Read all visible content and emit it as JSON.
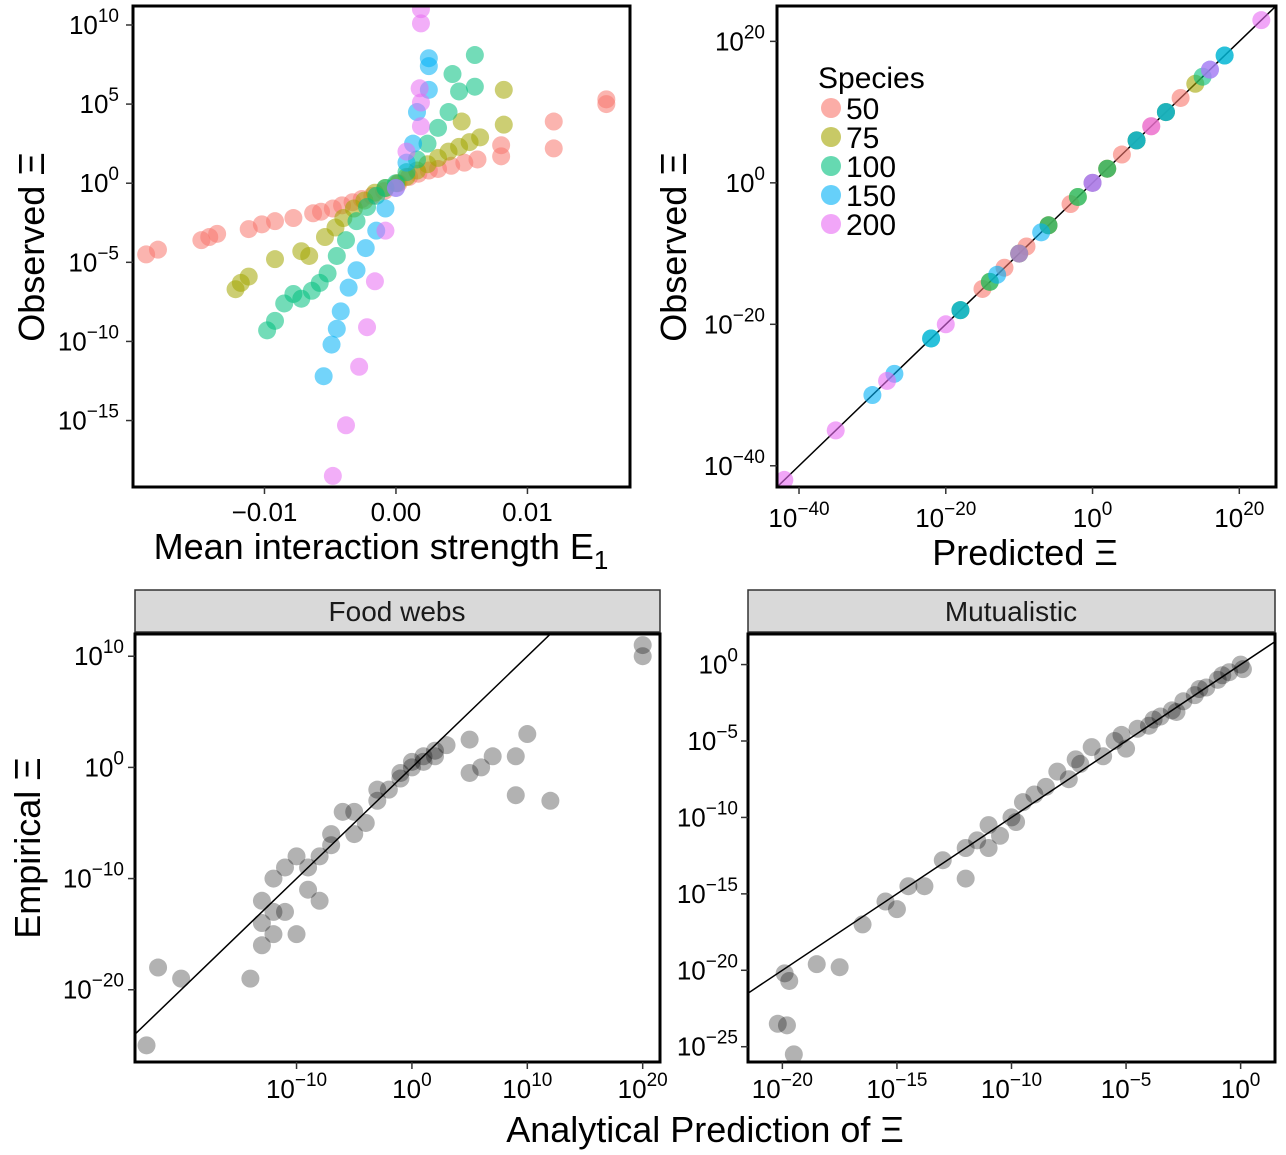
{
  "figure": {
    "panels": {
      "a": {
        "xlabel": "Mean interaction strength E",
        "xlabel_sub": "1",
        "ylabel": "Observed",
        "ylabel_symbol": "Ξ"
      },
      "b": {
        "xlabel": "Predicted Ξ",
        "ylabel": "Observed",
        "ylabel_symbol": "Ξ"
      },
      "c": {
        "strip": "Food webs",
        "ylabel": "Empirical",
        "ylabel_symbol": "Ξ"
      },
      "d": {
        "strip": "Mutualistic"
      },
      "shared_xlabel": "Analytical Prediction of Ξ"
    },
    "legend": {
      "title": "Species",
      "entries": [
        {
          "label": "50",
          "color": "#F8766D"
        },
        {
          "label": "75",
          "color": "#A3A500"
        },
        {
          "label": "100",
          "color": "#00BF7D"
        },
        {
          "label": "150",
          "color": "#00B0F6"
        },
        {
          "label": "200",
          "color": "#E76BF3"
        }
      ]
    }
  },
  "chart_data": [
    {
      "type": "scatter",
      "xlabel": "Mean interaction strength E1",
      "ylabel": "Observed Ξ",
      "y_scale": "log10",
      "xlim": [
        -0.02,
        0.0178
      ],
      "ylim_log10": [
        -19.2,
        11.2
      ],
      "x_ticks": [
        -0.01,
        0.0,
        0.01
      ],
      "x_tick_labels": [
        "−0.01",
        "0.00",
        "0.01"
      ],
      "y_ticks_log10": [
        10,
        5,
        0,
        -5,
        -10,
        -15
      ],
      "color_by": "Species",
      "series": [
        {
          "name": "50",
          "color": "#F8766D",
          "points": [
            [
              -0.019,
              -4.5
            ],
            [
              -0.0181,
              -4.2
            ],
            [
              -0.0148,
              -3.6
            ],
            [
              -0.0142,
              -3.4
            ],
            [
              -0.0136,
              -3.2
            ],
            [
              -0.0112,
              -2.9
            ],
            [
              -0.0102,
              -2.6
            ],
            [
              -0.0092,
              -2.4
            ],
            [
              -0.0078,
              -2.2
            ],
            [
              -0.0063,
              -1.9
            ],
            [
              -0.0057,
              -1.8
            ],
            [
              -0.0048,
              -1.6
            ],
            [
              -0.0041,
              -1.4
            ],
            [
              -0.0033,
              -1.2
            ],
            [
              -0.0026,
              -1.0
            ],
            [
              -0.0018,
              -0.8
            ],
            [
              -0.0009,
              -0.5
            ],
            [
              0.0002,
              0.0
            ],
            [
              0.001,
              0.4
            ],
            [
              0.0017,
              0.6
            ],
            [
              0.0025,
              0.8
            ],
            [
              0.0032,
              0.9
            ],
            [
              0.0042,
              1.1
            ],
            [
              0.0052,
              1.3
            ],
            [
              0.0062,
              1.5
            ],
            [
              0.008,
              1.7
            ],
            [
              0.008,
              2.4
            ],
            [
              0.012,
              2.2
            ],
            [
              0.012,
              3.9
            ],
            [
              0.016,
              5.3
            ],
            [
              0.016,
              5.0
            ]
          ]
        },
        {
          "name": "75",
          "color": "#A3A500",
          "points": [
            [
              -0.0122,
              -6.7
            ],
            [
              -0.0118,
              -6.3
            ],
            [
              -0.0112,
              -5.9
            ],
            [
              -0.0092,
              -4.8
            ],
            [
              -0.0072,
              -4.3
            ],
            [
              -0.0066,
              -4.6
            ],
            [
              -0.0054,
              -3.4
            ],
            [
              -0.0046,
              -2.8
            ],
            [
              -0.004,
              -2.2
            ],
            [
              -0.0032,
              -1.6
            ],
            [
              -0.0024,
              -1.1
            ],
            [
              -0.0016,
              -0.6
            ],
            [
              -0.0008,
              -0.3
            ],
            [
              0.0001,
              0.0
            ],
            [
              0.0008,
              0.4
            ],
            [
              0.0016,
              0.8
            ],
            [
              0.0024,
              1.2
            ],
            [
              0.0032,
              1.6
            ],
            [
              0.004,
              2.0
            ],
            [
              0.0048,
              2.3
            ],
            [
              0.0056,
              2.6
            ],
            [
              0.0064,
              2.9
            ],
            [
              0.0082,
              3.7
            ],
            [
              0.0082,
              5.9
            ],
            [
              0.005,
              3.9
            ]
          ]
        },
        {
          "name": "100",
          "color": "#00BF7D",
          "points": [
            [
              -0.0098,
              -9.3
            ],
            [
              -0.0092,
              -8.7
            ],
            [
              -0.0085,
              -7.6
            ],
            [
              -0.0078,
              -7.0
            ],
            [
              -0.0072,
              -7.3
            ],
            [
              -0.0064,
              -6.8
            ],
            [
              -0.0058,
              -6.3
            ],
            [
              -0.0052,
              -5.7
            ],
            [
              -0.0045,
              -4.6
            ],
            [
              -0.0038,
              -3.6
            ],
            [
              -0.003,
              -2.4
            ],
            [
              -0.0022,
              -1.5
            ],
            [
              -0.0015,
              -0.8
            ],
            [
              -0.0008,
              -0.3
            ],
            [
              0.0,
              0.0
            ],
            [
              0.0008,
              0.7
            ],
            [
              0.0016,
              1.5
            ],
            [
              0.0024,
              2.5
            ],
            [
              0.0032,
              3.5
            ],
            [
              0.004,
              4.5
            ],
            [
              0.0048,
              5.8
            ],
            [
              0.006,
              6.1
            ],
            [
              0.006,
              8.1
            ],
            [
              0.0043,
              6.9
            ]
          ]
        },
        {
          "name": "150",
          "color": "#00B0F6",
          "points": [
            [
              -0.0055,
              -12.2
            ],
            [
              -0.0049,
              -10.2
            ],
            [
              -0.0045,
              -9.2
            ],
            [
              -0.0042,
              -8.1
            ],
            [
              -0.0036,
              -6.6
            ],
            [
              -0.003,
              -5.5
            ],
            [
              -0.0023,
              -4.1
            ],
            [
              -0.0015,
              -3.0
            ],
            [
              -0.0008,
              -1.6
            ],
            [
              0.0,
              -0.3
            ],
            [
              0.0008,
              1.3
            ],
            [
              0.0013,
              2.5
            ],
            [
              0.0016,
              4.5
            ],
            [
              0.0025,
              5.9
            ],
            [
              0.0025,
              7.4
            ],
            [
              0.0025,
              7.9
            ]
          ]
        },
        {
          "name": "200",
          "color": "#E76BF3",
          "points": [
            [
              -0.0048,
              -18.5
            ],
            [
              -0.0038,
              -15.3
            ],
            [
              -0.0028,
              -11.6
            ],
            [
              -0.0022,
              -9.1
            ],
            [
              -0.0016,
              -6.2
            ],
            [
              -0.0008,
              -3.0
            ],
            [
              0.0,
              -0.3
            ],
            [
              0.0008,
              2.0
            ],
            [
              0.0018,
              6.0
            ],
            [
              0.0019,
              3.6
            ],
            [
              0.0019,
              5.1
            ],
            [
              0.0019,
              10.1
            ],
            [
              0.0019,
              11.0
            ]
          ]
        }
      ]
    },
    {
      "type": "scatter",
      "xlabel": "Predicted Ξ",
      "ylabel": "Observed Ξ",
      "x_scale": "log10",
      "y_scale": "log10",
      "lim_log10": [
        -43,
        25
      ],
      "ticks_log10": [
        -40,
        -20,
        0,
        20
      ],
      "reference_line": "y = x",
      "color_by": "Species",
      "series": [
        {
          "name": "50",
          "color": "#F8766D",
          "points": [
            [
              -15,
              -15
            ],
            [
              -12,
              -12
            ],
            [
              -9,
              -9
            ],
            [
              -6,
              -6
            ],
            [
              -3,
              -3
            ],
            [
              0,
              0
            ],
            [
              2,
              2
            ],
            [
              4,
              4
            ],
            [
              6,
              6
            ],
            [
              8,
              8
            ],
            [
              10,
              10
            ],
            [
              12,
              12
            ]
          ]
        },
        {
          "name": "75",
          "color": "#A3A500",
          "points": [
            [
              -18,
              -18
            ],
            [
              -14,
              -14
            ],
            [
              -10,
              -10
            ],
            [
              -6,
              -6
            ],
            [
              -2,
              -2
            ],
            [
              2,
              2
            ],
            [
              6,
              6
            ],
            [
              10,
              10
            ],
            [
              14,
              14
            ]
          ]
        },
        {
          "name": "100",
          "color": "#00BF7D",
          "points": [
            [
              -22,
              -22
            ],
            [
              -18,
              -18
            ],
            [
              -14,
              -14
            ],
            [
              -10,
              -10
            ],
            [
              -6,
              -6
            ],
            [
              -2,
              -2
            ],
            [
              2,
              2
            ],
            [
              6,
              6
            ],
            [
              10,
              10
            ],
            [
              15,
              15
            ],
            [
              18,
              18
            ]
          ]
        },
        {
          "name": "150",
          "color": "#00B0F6",
          "points": [
            [
              -30,
              -30
            ],
            [
              -27,
              -27
            ],
            [
              -22,
              -22
            ],
            [
              -18,
              -18
            ],
            [
              -13,
              -13
            ],
            [
              -7,
              -7
            ],
            [
              0,
              0
            ],
            [
              6,
              6
            ],
            [
              10,
              10
            ],
            [
              16,
              16
            ],
            [
              18,
              18
            ]
          ]
        },
        {
          "name": "200",
          "color": "#E76BF3",
          "points": [
            [
              -42,
              -42
            ],
            [
              -35,
              -35
            ],
            [
              -28,
              -28
            ],
            [
              -20,
              -20
            ],
            [
              -10,
              -10
            ],
            [
              0,
              0
            ],
            [
              8,
              8
            ],
            [
              16,
              16
            ],
            [
              23,
              23
            ]
          ]
        }
      ]
    },
    {
      "type": "scatter",
      "title": "Food webs",
      "xlabel": "Analytical Prediction of Ξ",
      "ylabel": "Empirical Ξ",
      "x_scale": "log10",
      "y_scale": "log10",
      "xlim_log10": [
        -24,
        21.5
      ],
      "ylim_log10": [
        -26.5,
        12
      ],
      "x_ticks_log10": [
        -10,
        0,
        10,
        20
      ],
      "y_ticks_log10": [
        10,
        0,
        -10,
        -20
      ],
      "reference_line": "y = x",
      "color": "#000000",
      "points": [
        [
          -22,
          -18
        ],
        [
          -20,
          -19
        ],
        [
          -23,
          -25
        ],
        [
          -14,
          -19
        ],
        [
          -13,
          -16
        ],
        [
          -13,
          -12
        ],
        [
          -12,
          -10
        ],
        [
          -11,
          -9
        ],
        [
          -10,
          -8
        ],
        [
          -12,
          -13
        ],
        [
          -10,
          -15
        ],
        [
          -9,
          -11
        ],
        [
          -8,
          -8
        ],
        [
          -7,
          -6
        ],
        [
          -6,
          -4
        ],
        [
          -5,
          -6
        ],
        [
          -4,
          -5
        ],
        [
          -3,
          -3
        ],
        [
          -2,
          -2
        ],
        [
          -1,
          -1
        ],
        [
          0,
          0
        ],
        [
          1,
          0.5
        ],
        [
          2,
          1
        ],
        [
          3,
          2
        ],
        [
          -8,
          -12
        ],
        [
          -11,
          -13
        ],
        [
          -12,
          -15
        ],
        [
          -13,
          -14
        ],
        [
          -9,
          -9
        ],
        [
          -7,
          -7
        ],
        [
          -5,
          -4
        ],
        [
          -3,
          -2
        ],
        [
          -1,
          -0.5
        ],
        [
          0,
          0.5
        ],
        [
          1,
          1
        ],
        [
          2,
          1.5
        ],
        [
          5,
          2.5
        ],
        [
          6,
          0
        ],
        [
          9,
          1
        ],
        [
          10,
          3
        ],
        [
          9,
          -2.5
        ],
        [
          12,
          -3
        ],
        [
          5,
          -0.5
        ],
        [
          7,
          1
        ],
        [
          20,
          11
        ],
        [
          20,
          10
        ]
      ]
    },
    {
      "type": "scatter",
      "title": "Mutualistic",
      "xlabel": "Analytical Prediction of Ξ",
      "x_scale": "log10",
      "y_scale": "log10",
      "xlim_log10": [
        -21.5,
        1.5
      ],
      "ylim_log10": [
        -26,
        2
      ],
      "x_ticks_log10": [
        -20,
        -15,
        -10,
        -5,
        0
      ],
      "y_ticks_log10": [
        0,
        -5,
        -10,
        -15,
        -20,
        -25
      ],
      "reference_line": "y = x",
      "color": "#000000",
      "points": [
        [
          -20.2,
          -23.5
        ],
        [
          -19.8,
          -23.6
        ],
        [
          -19.5,
          -25.5
        ],
        [
          -19.9,
          -20.2
        ],
        [
          -19.7,
          -20.7
        ],
        [
          -18.5,
          -19.6
        ],
        [
          -17.5,
          -19.8
        ],
        [
          -16.5,
          -17
        ],
        [
          -15.5,
          -15.5
        ],
        [
          -14.5,
          -14.5
        ],
        [
          -13.8,
          -14.5
        ],
        [
          -13,
          -12.8
        ],
        [
          -12,
          -12
        ],
        [
          -11.5,
          -11.5
        ],
        [
          -11,
          -10.5
        ],
        [
          -10,
          -10
        ],
        [
          -9.5,
          -9
        ],
        [
          -9,
          -8.5
        ],
        [
          -8.5,
          -8
        ],
        [
          -8,
          -7
        ],
        [
          -7.5,
          -7.5
        ],
        [
          -7,
          -6.5
        ],
        [
          -6,
          -6
        ],
        [
          -5.5,
          -5
        ],
        [
          -5,
          -5.5
        ],
        [
          -4.5,
          -4.2
        ],
        [
          -4,
          -4
        ],
        [
          -3.5,
          -3.4
        ],
        [
          -3,
          -3
        ],
        [
          -2.5,
          -2.4
        ],
        [
          -2,
          -2
        ],
        [
          -1.5,
          -1.5
        ],
        [
          -1,
          -1
        ],
        [
          -0.5,
          -0.5
        ],
        [
          0,
          0
        ],
        [
          -15,
          -16
        ],
        [
          -12,
          -14
        ],
        [
          -11,
          -12
        ],
        [
          -10.5,
          -11.2
        ],
        [
          -9.8,
          -10.3
        ],
        [
          -7.2,
          -6.2
        ],
        [
          -6.5,
          -5.4
        ],
        [
          -5.2,
          -4.6
        ],
        [
          -3.8,
          -3.6
        ],
        [
          -2.8,
          -3.1
        ],
        [
          -1.8,
          -1.6
        ],
        [
          -0.8,
          -0.7
        ],
        [
          0.1,
          -0.3
        ]
      ]
    }
  ]
}
